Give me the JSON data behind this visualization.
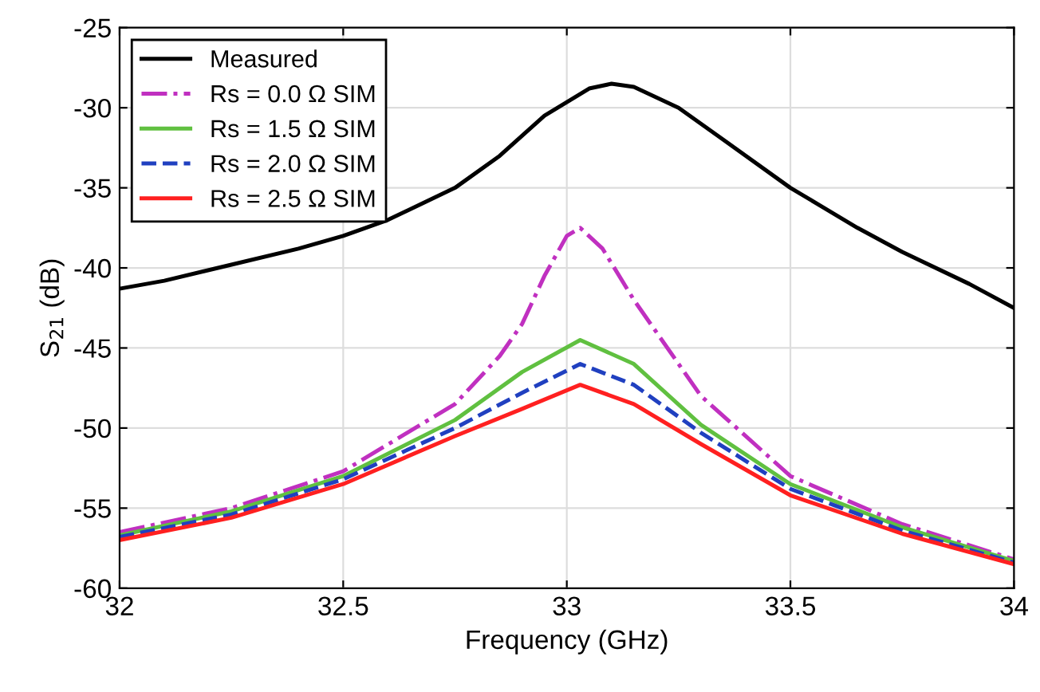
{
  "chart_data": {
    "type": "line",
    "xlabel": "Frequency (GHz)",
    "ylabel": "S$_{21}$ (dB)",
    "xlim": [
      32,
      34
    ],
    "ylim": [
      -60,
      -25
    ],
    "xticks": [
      32,
      32.5,
      33,
      33.5,
      34
    ],
    "yticks": [
      -60,
      -55,
      -50,
      -45,
      -40,
      -35,
      -30,
      -25
    ],
    "grid": true,
    "legend": "top left",
    "series": [
      {
        "name": "Measured",
        "color": "#000000",
        "line_style": "solid",
        "x": [
          32,
          32.1,
          32.25,
          32.4,
          32.5,
          32.6,
          32.75,
          32.85,
          32.95,
          33.05,
          33.1,
          33.15,
          33.25,
          33.35,
          33.5,
          33.65,
          33.75,
          33.9,
          34
        ],
        "values": [
          -41.3,
          -40.8,
          -39.8,
          -38.8,
          -38,
          -37,
          -35,
          -33,
          -30.5,
          -28.8,
          -28.5,
          -28.7,
          -30,
          -32,
          -35,
          -37.5,
          -39,
          -41,
          -42.5
        ]
      },
      {
        "name": "Rs = 0.0 Ω SIM",
        "color": "#c030c0",
        "line_style": "dashdot",
        "x": [
          32,
          32.25,
          32.5,
          32.75,
          32.85,
          32.9,
          32.95,
          33,
          33.03,
          33.08,
          33.15,
          33.3,
          33.5,
          33.75,
          34
        ],
        "values": [
          -56.5,
          -55,
          -52.7,
          -48.5,
          -45.5,
          -43.5,
          -40.5,
          -38,
          -37.5,
          -38.8,
          -42,
          -48,
          -53,
          -56,
          -58.2
        ]
      },
      {
        "name": "Rs = 1.5 Ω SIM",
        "color": "#60c040",
        "line_style": "solid",
        "x": [
          32,
          32.25,
          32.5,
          32.75,
          32.9,
          33.03,
          33.15,
          33.3,
          33.5,
          33.75,
          34
        ],
        "values": [
          -56.7,
          -55.2,
          -53,
          -49.5,
          -46.5,
          -44.5,
          -46,
          -49.8,
          -53.5,
          -56.2,
          -58.3
        ]
      },
      {
        "name": "Rs = 2.0 Ω SIM",
        "color": "#2040c0",
        "line_style": "dashed",
        "x": [
          32,
          32.25,
          32.5,
          32.75,
          32.9,
          33.03,
          33.15,
          33.3,
          33.5,
          33.75,
          34
        ],
        "values": [
          -56.8,
          -55.4,
          -53.2,
          -50,
          -47.8,
          -46,
          -47.3,
          -50.3,
          -53.8,
          -56.4,
          -58.4
        ]
      },
      {
        "name": "Rs = 2.5 Ω SIM",
        "color": "#ff2020",
        "line_style": "solid",
        "x": [
          32,
          32.25,
          32.5,
          32.75,
          32.9,
          33.03,
          33.15,
          33.3,
          33.5,
          33.75,
          34
        ],
        "values": [
          -57,
          -55.6,
          -53.5,
          -50.5,
          -48.8,
          -47.3,
          -48.5,
          -51,
          -54.2,
          -56.6,
          -58.5
        ]
      }
    ]
  }
}
